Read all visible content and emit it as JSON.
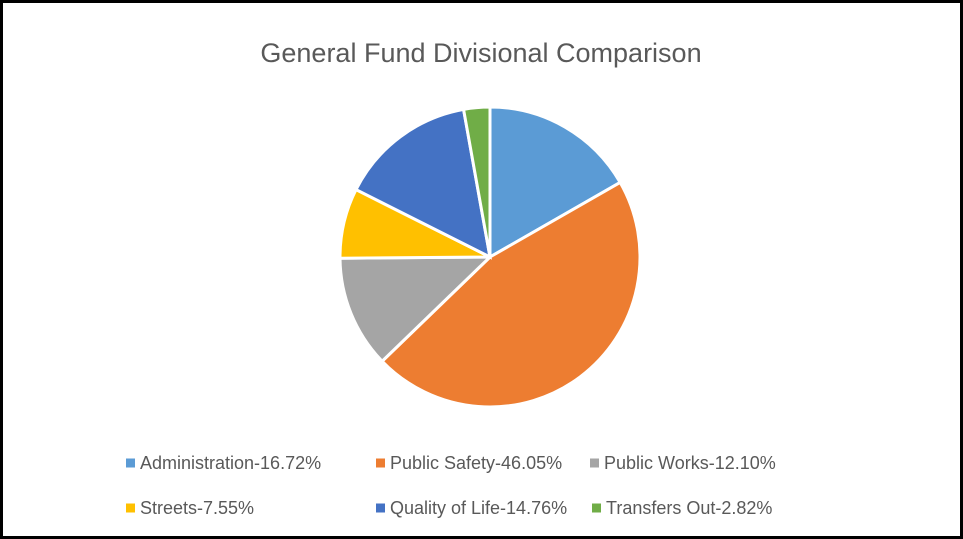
{
  "chart_data": {
    "type": "pie",
    "title": "General Fund Divisional Comparison",
    "categories": [
      "Administration-16.72%",
      "Public Safety-46.05%",
      "Public Works-12.10%",
      "Streets-7.55%",
      "Quality of Life-14.76%",
      "Transfers Out-2.82%"
    ],
    "values": [
      16.72,
      46.05,
      12.1,
      7.55,
      14.76,
      2.82
    ],
    "colors": [
      "#5b9bd5",
      "#ed7d31",
      "#a5a5a5",
      "#ffc000",
      "#4472c4",
      "#70ad47"
    ],
    "legend": "bottom"
  }
}
